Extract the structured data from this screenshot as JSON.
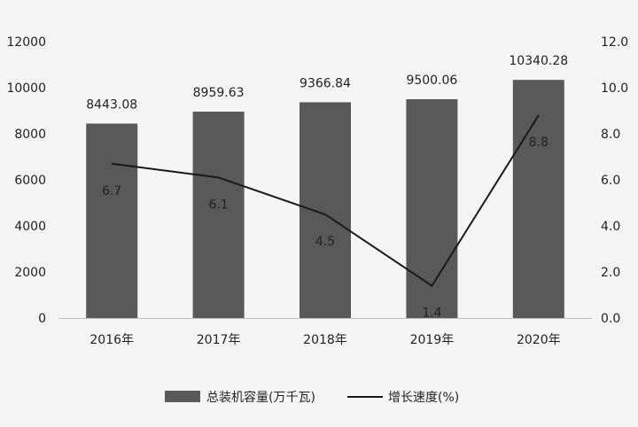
{
  "chart_data": {
    "type": "bar+line",
    "categories": [
      "2016年",
      "2017年",
      "2018年",
      "2019年",
      "2020年"
    ],
    "series": [
      {
        "name": "总装机容量(万千瓦)",
        "type": "bar",
        "axis": "left",
        "values": [
          8443.08,
          8959.63,
          9366.84,
          9500.06,
          10340.28
        ],
        "labels": [
          "8443.08",
          "8959.63",
          "9366.84",
          "9500.06",
          "10340.28"
        ],
        "color": "#595959"
      },
      {
        "name": "增长速度(%)",
        "type": "line",
        "axis": "right",
        "values": [
          6.7,
          6.1,
          4.5,
          1.4,
          8.8
        ],
        "labels": [
          "6.7",
          "6.1",
          "4.5",
          "1.4",
          "8.8"
        ],
        "color": "#1a1a1a"
      }
    ],
    "y_left": {
      "range": [
        0,
        12000
      ],
      "ticks": [
        "0",
        "2000",
        "4000",
        "6000",
        "8000",
        "10000",
        "12000"
      ]
    },
    "y_right": {
      "range": [
        0,
        12
      ],
      "ticks": [
        "0.0",
        "2.0",
        "4.0",
        "6.0",
        "8.0",
        "10.0",
        "12.0"
      ]
    },
    "grid": false,
    "legend": "bottom"
  }
}
